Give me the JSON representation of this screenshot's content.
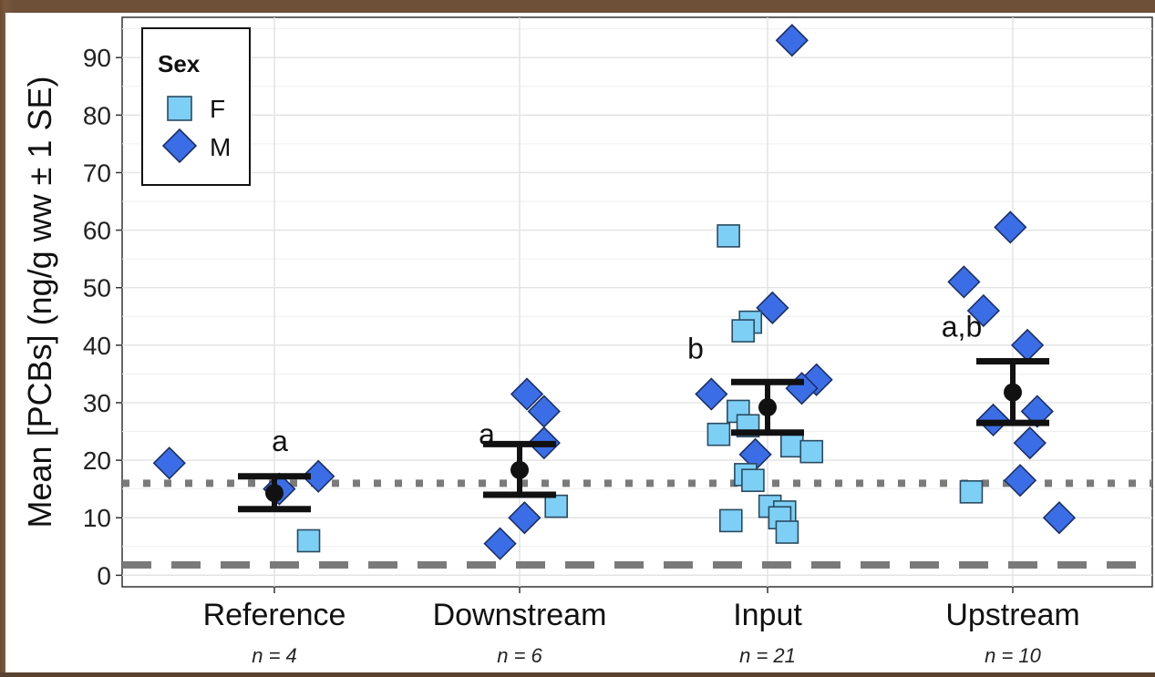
{
  "chart_data": {
    "type": "scatter",
    "ylabel": "Mean [PCBs] (ng/g ww ± 1 SE)",
    "ylim": [
      -2,
      97
    ],
    "yticks": [
      0,
      10,
      20,
      30,
      40,
      50,
      60,
      70,
      80,
      90
    ],
    "grid": true,
    "categories": [
      "Reference",
      "Downstream",
      "Input",
      "Upstream"
    ],
    "sample_sizes": [
      "n = 4",
      "n = 6",
      "n = 21",
      "n = 10"
    ],
    "legend": {
      "title": "Sex",
      "position": "top-left",
      "entries": [
        {
          "label": "F",
          "shape": "square",
          "color": "#7dcff5"
        },
        {
          "label": "M",
          "shape": "diamond",
          "color": "#3b6ee6"
        }
      ]
    },
    "points": [
      {
        "group": "Reference",
        "x": -0.43,
        "y": 19.5,
        "sex": "M"
      },
      {
        "group": "Reference",
        "x": 0.18,
        "y": 17.2,
        "sex": "M"
      },
      {
        "group": "Reference",
        "x": 0.02,
        "y": 15.0,
        "sex": "M"
      },
      {
        "group": "Reference",
        "x": 0.14,
        "y": 6.0,
        "sex": "F"
      },
      {
        "group": "Downstream",
        "x": 0.03,
        "y": 31.5,
        "sex": "M"
      },
      {
        "group": "Downstream",
        "x": 0.1,
        "y": 28.5,
        "sex": "M"
      },
      {
        "group": "Downstream",
        "x": 0.1,
        "y": 23.0,
        "sex": "M"
      },
      {
        "group": "Downstream",
        "x": 0.15,
        "y": 12.0,
        "sex": "F"
      },
      {
        "group": "Downstream",
        "x": 0.02,
        "y": 10.0,
        "sex": "M"
      },
      {
        "group": "Downstream",
        "x": -0.08,
        "y": 5.5,
        "sex": "M"
      },
      {
        "group": "Input",
        "x": 0.1,
        "y": 93.0,
        "sex": "M"
      },
      {
        "group": "Input",
        "x": -0.16,
        "y": 59.0,
        "sex": "F"
      },
      {
        "group": "Input",
        "x": 0.02,
        "y": 46.5,
        "sex": "M"
      },
      {
        "group": "Input",
        "x": -0.07,
        "y": 44.0,
        "sex": "F"
      },
      {
        "group": "Input",
        "x": -0.1,
        "y": 42.5,
        "sex": "F"
      },
      {
        "group": "Input",
        "x": 0.2,
        "y": 34.0,
        "sex": "M"
      },
      {
        "group": "Input",
        "x": 0.14,
        "y": 32.5,
        "sex": "M"
      },
      {
        "group": "Input",
        "x": -0.23,
        "y": 31.5,
        "sex": "M"
      },
      {
        "group": "Input",
        "x": -0.12,
        "y": 28.5,
        "sex": "F"
      },
      {
        "group": "Input",
        "x": -0.08,
        "y": 26.0,
        "sex": "F"
      },
      {
        "group": "Input",
        "x": -0.2,
        "y": 24.5,
        "sex": "F"
      },
      {
        "group": "Input",
        "x": 0.1,
        "y": 22.5,
        "sex": "F"
      },
      {
        "group": "Input",
        "x": 0.18,
        "y": 21.5,
        "sex": "F"
      },
      {
        "group": "Input",
        "x": -0.05,
        "y": 21.0,
        "sex": "M"
      },
      {
        "group": "Input",
        "x": -0.09,
        "y": 17.5,
        "sex": "F"
      },
      {
        "group": "Input",
        "x": -0.06,
        "y": 16.5,
        "sex": "F"
      },
      {
        "group": "Input",
        "x": 0.01,
        "y": 12.0,
        "sex": "F"
      },
      {
        "group": "Input",
        "x": 0.07,
        "y": 11.0,
        "sex": "F"
      },
      {
        "group": "Input",
        "x": 0.05,
        "y": 10.0,
        "sex": "F"
      },
      {
        "group": "Input",
        "x": -0.15,
        "y": 9.5,
        "sex": "F"
      },
      {
        "group": "Input",
        "x": 0.08,
        "y": 7.5,
        "sex": "F"
      },
      {
        "group": "Upstream",
        "x": -0.01,
        "y": 60.5,
        "sex": "M"
      },
      {
        "group": "Upstream",
        "x": -0.2,
        "y": 51.0,
        "sex": "M"
      },
      {
        "group": "Upstream",
        "x": -0.12,
        "y": 46.0,
        "sex": "M"
      },
      {
        "group": "Upstream",
        "x": 0.06,
        "y": 40.0,
        "sex": "M"
      },
      {
        "group": "Upstream",
        "x": 0.1,
        "y": 28.5,
        "sex": "M"
      },
      {
        "group": "Upstream",
        "x": -0.08,
        "y": 27.0,
        "sex": "M"
      },
      {
        "group": "Upstream",
        "x": 0.07,
        "y": 23.0,
        "sex": "M"
      },
      {
        "group": "Upstream",
        "x": 0.03,
        "y": 16.5,
        "sex": "M"
      },
      {
        "group": "Upstream",
        "x": -0.17,
        "y": 14.5,
        "sex": "F"
      },
      {
        "group": "Upstream",
        "x": 0.19,
        "y": 10.0,
        "sex": "M"
      }
    ],
    "means": [
      {
        "group": "Reference",
        "mean": 14.3,
        "lower": 11.5,
        "upper": 17.2,
        "label": "a"
      },
      {
        "group": "Downstream",
        "mean": 18.3,
        "lower": 14.0,
        "upper": 22.8,
        "label": "a"
      },
      {
        "group": "Input",
        "mean": 29.2,
        "lower": 24.8,
        "upper": 33.6,
        "label": "b"
      },
      {
        "group": "Upstream",
        "mean": 31.8,
        "lower": 26.5,
        "upper": 37.2,
        "label": "a,b"
      }
    ],
    "reference_lines": [
      {
        "y": 16.0,
        "style": "dotted"
      },
      {
        "y": 1.8,
        "style": "dashed"
      }
    ]
  }
}
